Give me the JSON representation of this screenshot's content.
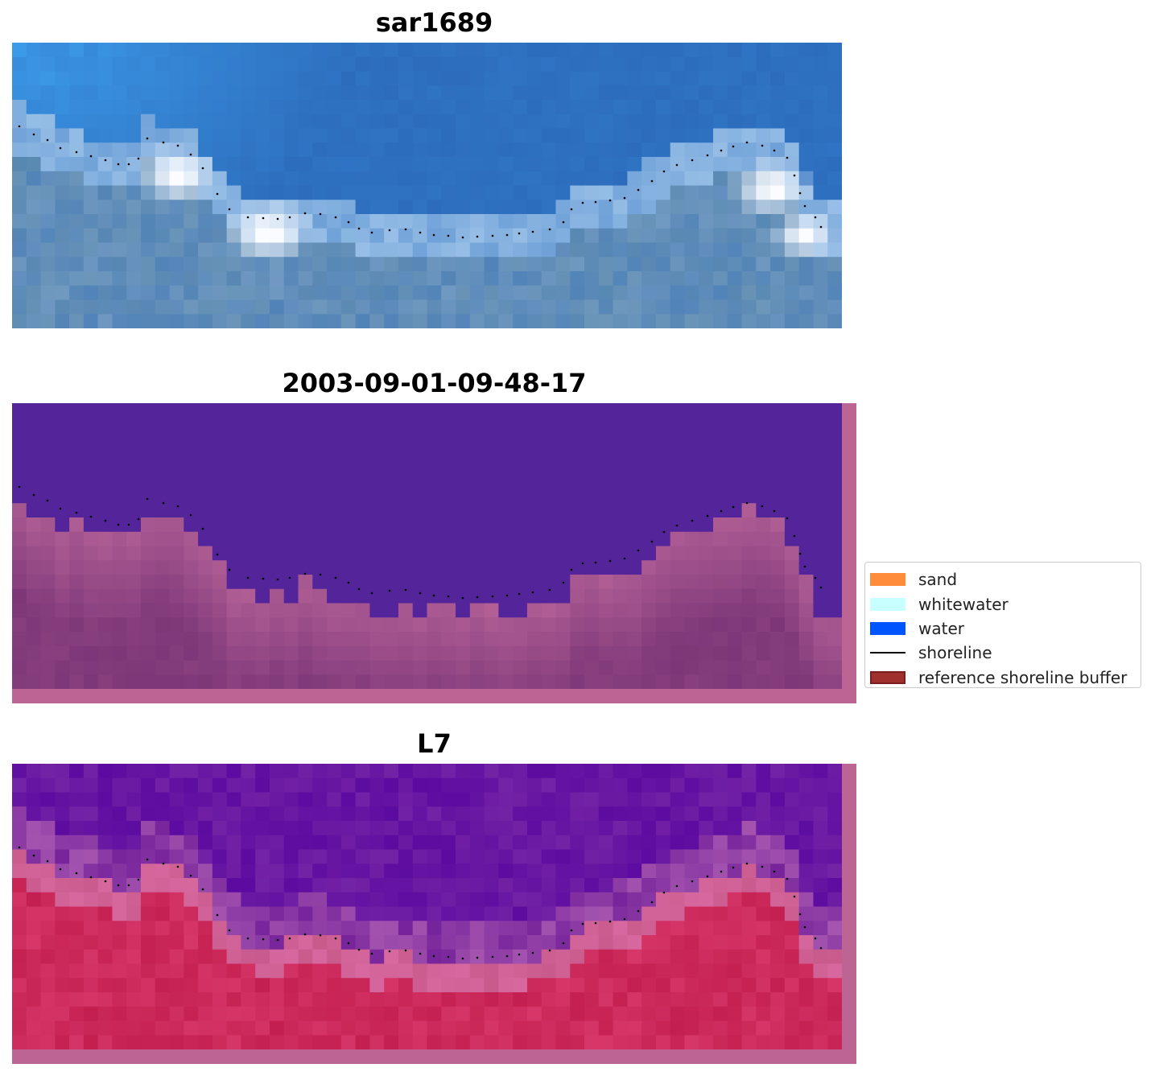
{
  "panels": [
    {
      "id": "rgb",
      "title": "sar1689",
      "style": "rgb"
    },
    {
      "id": "classification",
      "title": "2003-09-01-09-48-17",
      "style": "classified"
    },
    {
      "id": "index",
      "title": "L7",
      "style": "index"
    }
  ],
  "legend": {
    "items": [
      {
        "label": "sand",
        "color": "#ff8c3a",
        "kind": "patch"
      },
      {
        "label": "whitewater",
        "color": "#c8ffff",
        "kind": "patch"
      },
      {
        "label": "water",
        "color": "#0055ff",
        "kind": "patch"
      },
      {
        "label": "shoreline",
        "color": "#000000",
        "kind": "line"
      },
      {
        "label": "reference shoreline buffer",
        "color": "#a0302e",
        "kind": "patch"
      }
    ]
  },
  "colors": {
    "water_class": "#54249a",
    "land_class": "#7b3378",
    "buffer_overlay": "#bc6494",
    "shoreline": "#000000"
  }
}
